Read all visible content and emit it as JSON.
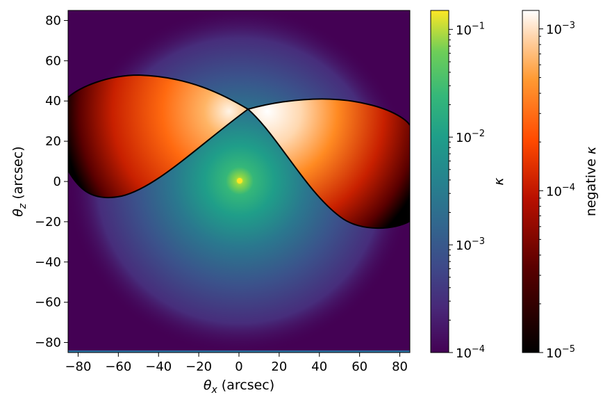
{
  "chart_data": {
    "type": "heatmap",
    "xlabel": "θx (arcsec)",
    "ylabel": "θz (arcsec)",
    "xlim": [
      -85,
      85
    ],
    "ylim": [
      -85,
      85
    ],
    "x_ticks": [
      "−80",
      "−60",
      "−40",
      "−20",
      "0",
      "20",
      "40",
      "60",
      "80"
    ],
    "x_tick_values": [
      -80,
      -60,
      -40,
      -20,
      0,
      20,
      40,
      60,
      80
    ],
    "y_ticks": [
      "80",
      "60",
      "40",
      "20",
      "0",
      "−20",
      "−40",
      "−60",
      "−80"
    ],
    "y_tick_values": [
      80,
      60,
      40,
      20,
      0,
      -20,
      -40,
      -60,
      -80
    ],
    "peak": {
      "x": 0,
      "y": 0
    },
    "negative_region_cusp": {
      "x": 4,
      "y": 35
    },
    "colorbars": [
      {
        "name": "kappa",
        "label": "κ",
        "colormap": "viridis",
        "scale": "log",
        "range": [
          0.0001,
          0.15
        ],
        "ticks": [
          {
            "value": 0.1,
            "label": "10−1"
          },
          {
            "value": 0.01,
            "label": "10−2"
          },
          {
            "value": 0.001,
            "label": "10−3"
          },
          {
            "value": 0.0001,
            "label": "10−4"
          }
        ]
      },
      {
        "name": "negative-kappa",
        "label": "negative κ",
        "colormap": "gist_heat",
        "scale": "log",
        "range": [
          1e-05,
          0.0013
        ],
        "ticks": [
          {
            "value": 0.001,
            "label": "10−3"
          },
          {
            "value": 0.0001,
            "label": "10−4"
          },
          {
            "value": 1e-05,
            "label": "10−5"
          }
        ]
      }
    ]
  }
}
